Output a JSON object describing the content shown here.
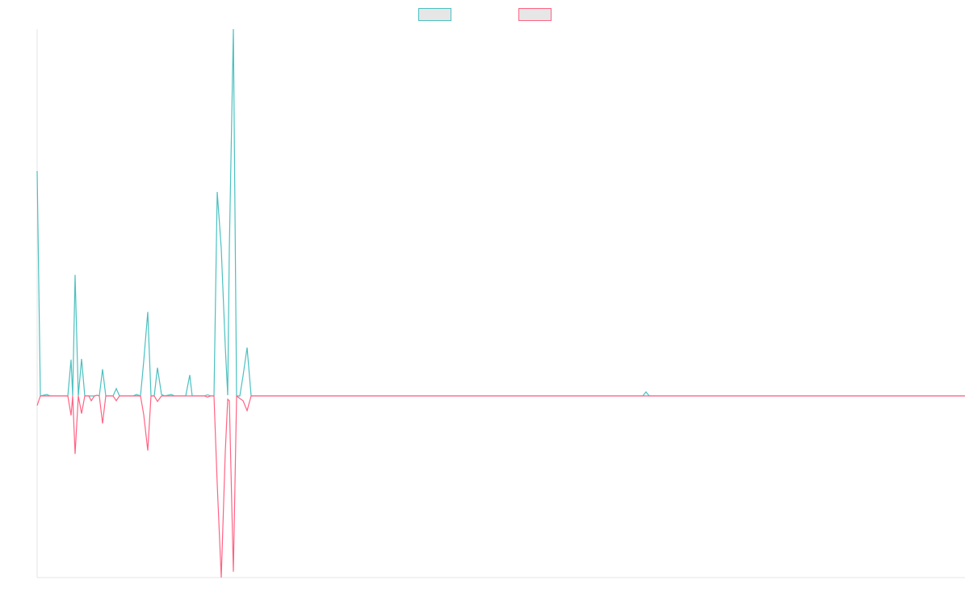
{
  "chart_data": {
    "type": "line",
    "x": [
      0,
      4,
      12,
      16,
      38,
      42,
      44,
      47,
      51,
      55,
      59,
      64,
      67,
      71,
      74,
      77,
      81,
      85,
      94,
      98,
      102,
      119,
      123,
      128,
      132,
      137,
      141,
      145,
      149,
      154,
      158,
      166,
      170,
      184,
      189,
      192,
      207,
      211,
      215,
      219,
      223,
      228,
      233,
      236,
      238,
      243,
      247,
      251,
      255,
      260,
      265,
      750,
      754,
      758,
      1149
    ],
    "xlim": [
      0,
      1149
    ],
    "ylim": [
      -49.5,
      100
    ],
    "series": [
      {
        "color": "#4bc0c0",
        "values": [
          61.3,
          0,
          0.4,
          0,
          0,
          9.9,
          0,
          33,
          0,
          10.1,
          0,
          0,
          0,
          0,
          0.2,
          0,
          7.3,
          0,
          0,
          2,
          0,
          0,
          0.4,
          0,
          9.5,
          22.9,
          0,
          0,
          7.7,
          0.4,
          0,
          0.4,
          0,
          0,
          5.7,
          0,
          0,
          0.3,
          0,
          0,
          55.6,
          40.2,
          13.4,
          0.2,
          40.2,
          100,
          0,
          0,
          5.5,
          13.2,
          0,
          0,
          1.1,
          0,
          0
        ]
      },
      {
        "color": "#ff6384",
        "values": [
          -2.6,
          0,
          0,
          0,
          0,
          -5.3,
          0,
          -15.8,
          0,
          -4.8,
          0,
          0,
          -1.3,
          0,
          0.2,
          0,
          -7.5,
          0,
          0,
          -1.3,
          0,
          0,
          0,
          0,
          -5.1,
          -14.9,
          0,
          0,
          -1.5,
          0,
          0,
          0,
          0,
          0,
          0,
          0,
          0,
          -0.3,
          0,
          0,
          -24,
          -49.5,
          -15.2,
          -0.9,
          -1.3,
          -47.9,
          0,
          -0.7,
          -1.3,
          -4,
          0,
          0,
          0,
          0,
          0
        ]
      }
    ]
  }
}
